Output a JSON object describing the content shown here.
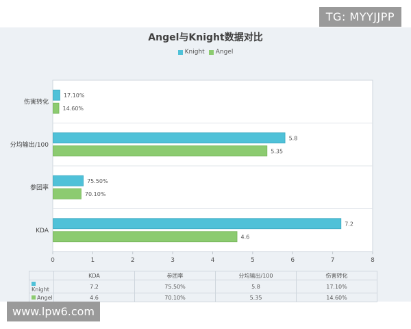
{
  "watermarks": {
    "top_right": "TG: MYYJJPP",
    "bottom_left": "www.lpw6.com"
  },
  "colors": {
    "knight": "#4fc1d8",
    "angel": "#8ccb70",
    "background": "#edf1f5"
  },
  "chart_data": {
    "type": "bar",
    "orientation": "horizontal",
    "title": "Angel与Knight数据对比",
    "categories": [
      "伤害转化",
      "分均输出/100",
      "参团率",
      "KDA"
    ],
    "series": [
      {
        "name": "Knight",
        "values": [
          0.171,
          5.8,
          0.755,
          7.2
        ],
        "labels": [
          "17.10%",
          "5.8",
          "75.50%",
          "7.2"
        ]
      },
      {
        "name": "Angel",
        "values": [
          0.146,
          5.35,
          0.701,
          4.6
        ],
        "labels": [
          "14.60%",
          "5.35",
          "70.10%",
          "4.6"
        ]
      }
    ],
    "xlim": [
      0,
      8
    ],
    "xticks": [
      "0",
      "1",
      "2",
      "3",
      "4",
      "5",
      "6",
      "7",
      "8"
    ],
    "legend_position": "top-center",
    "grid": false,
    "data_table": {
      "columns": [
        "KDA",
        "参团率",
        "分均输出/100",
        "伤害转化"
      ],
      "rows": [
        {
          "name": "Knight",
          "cells": [
            "7.2",
            "75.50%",
            "5.8",
            "17.10%"
          ]
        },
        {
          "name": "Angel",
          "cells": [
            "4.6",
            "70.10%",
            "5.35",
            "14.60%"
          ]
        }
      ]
    }
  }
}
